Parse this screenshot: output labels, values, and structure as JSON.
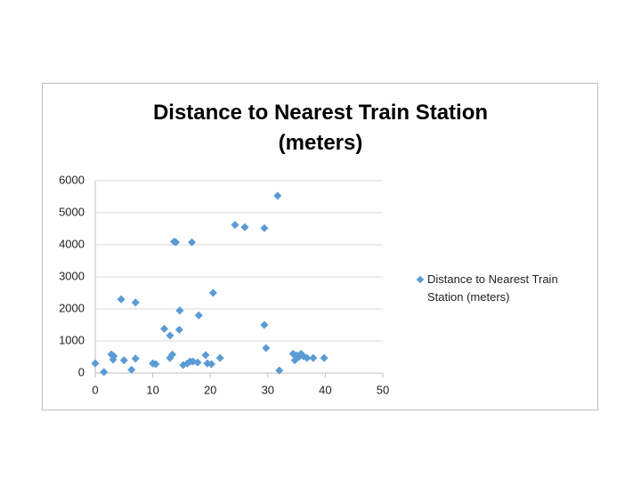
{
  "chart_data": {
    "type": "scatter",
    "title": "Distance to Nearest Train Station (meters)",
    "series": [
      {
        "name": "Distance to Nearest Train Station (meters)",
        "color": "#5b9bd5",
        "x": [
          0,
          1.5,
          2.8,
          3.1,
          3.2,
          4.5,
          5,
          6.3,
          7,
          7,
          10,
          10.5,
          12,
          13,
          13,
          13.4,
          13.7,
          14,
          14.6,
          14.7,
          15.3,
          16,
          16.5,
          16.8,
          17,
          17.8,
          18,
          19.2,
          19.5,
          20.2,
          20.5,
          21.7,
          24.3,
          26,
          29.4,
          29.4,
          29.7,
          31.7,
          32,
          34.4,
          34.7,
          35,
          35.4,
          35.8,
          36.2,
          36.8,
          37.9,
          39.8
        ],
        "values": [
          300,
          30,
          580,
          420,
          530,
          2300,
          400,
          100,
          2200,
          450,
          300,
          280,
          1380,
          1170,
          470,
          580,
          4100,
          4080,
          1350,
          1950,
          250,
          300,
          360,
          4080,
          360,
          330,
          1800,
          560,
          300,
          280,
          2500,
          470,
          4620,
          4550,
          1500,
          4520,
          780,
          5530,
          80,
          600,
          400,
          550,
          500,
          600,
          520,
          470,
          470,
          470
        ]
      }
    ],
    "xlim": [
      0,
      50
    ],
    "xticks": [
      0,
      10,
      20,
      30,
      40,
      50
    ],
    "ylim": [
      0,
      6000
    ],
    "yticks": [
      0,
      1000,
      2000,
      3000,
      4000,
      5000,
      6000
    ],
    "grid": true,
    "legend": "right"
  }
}
